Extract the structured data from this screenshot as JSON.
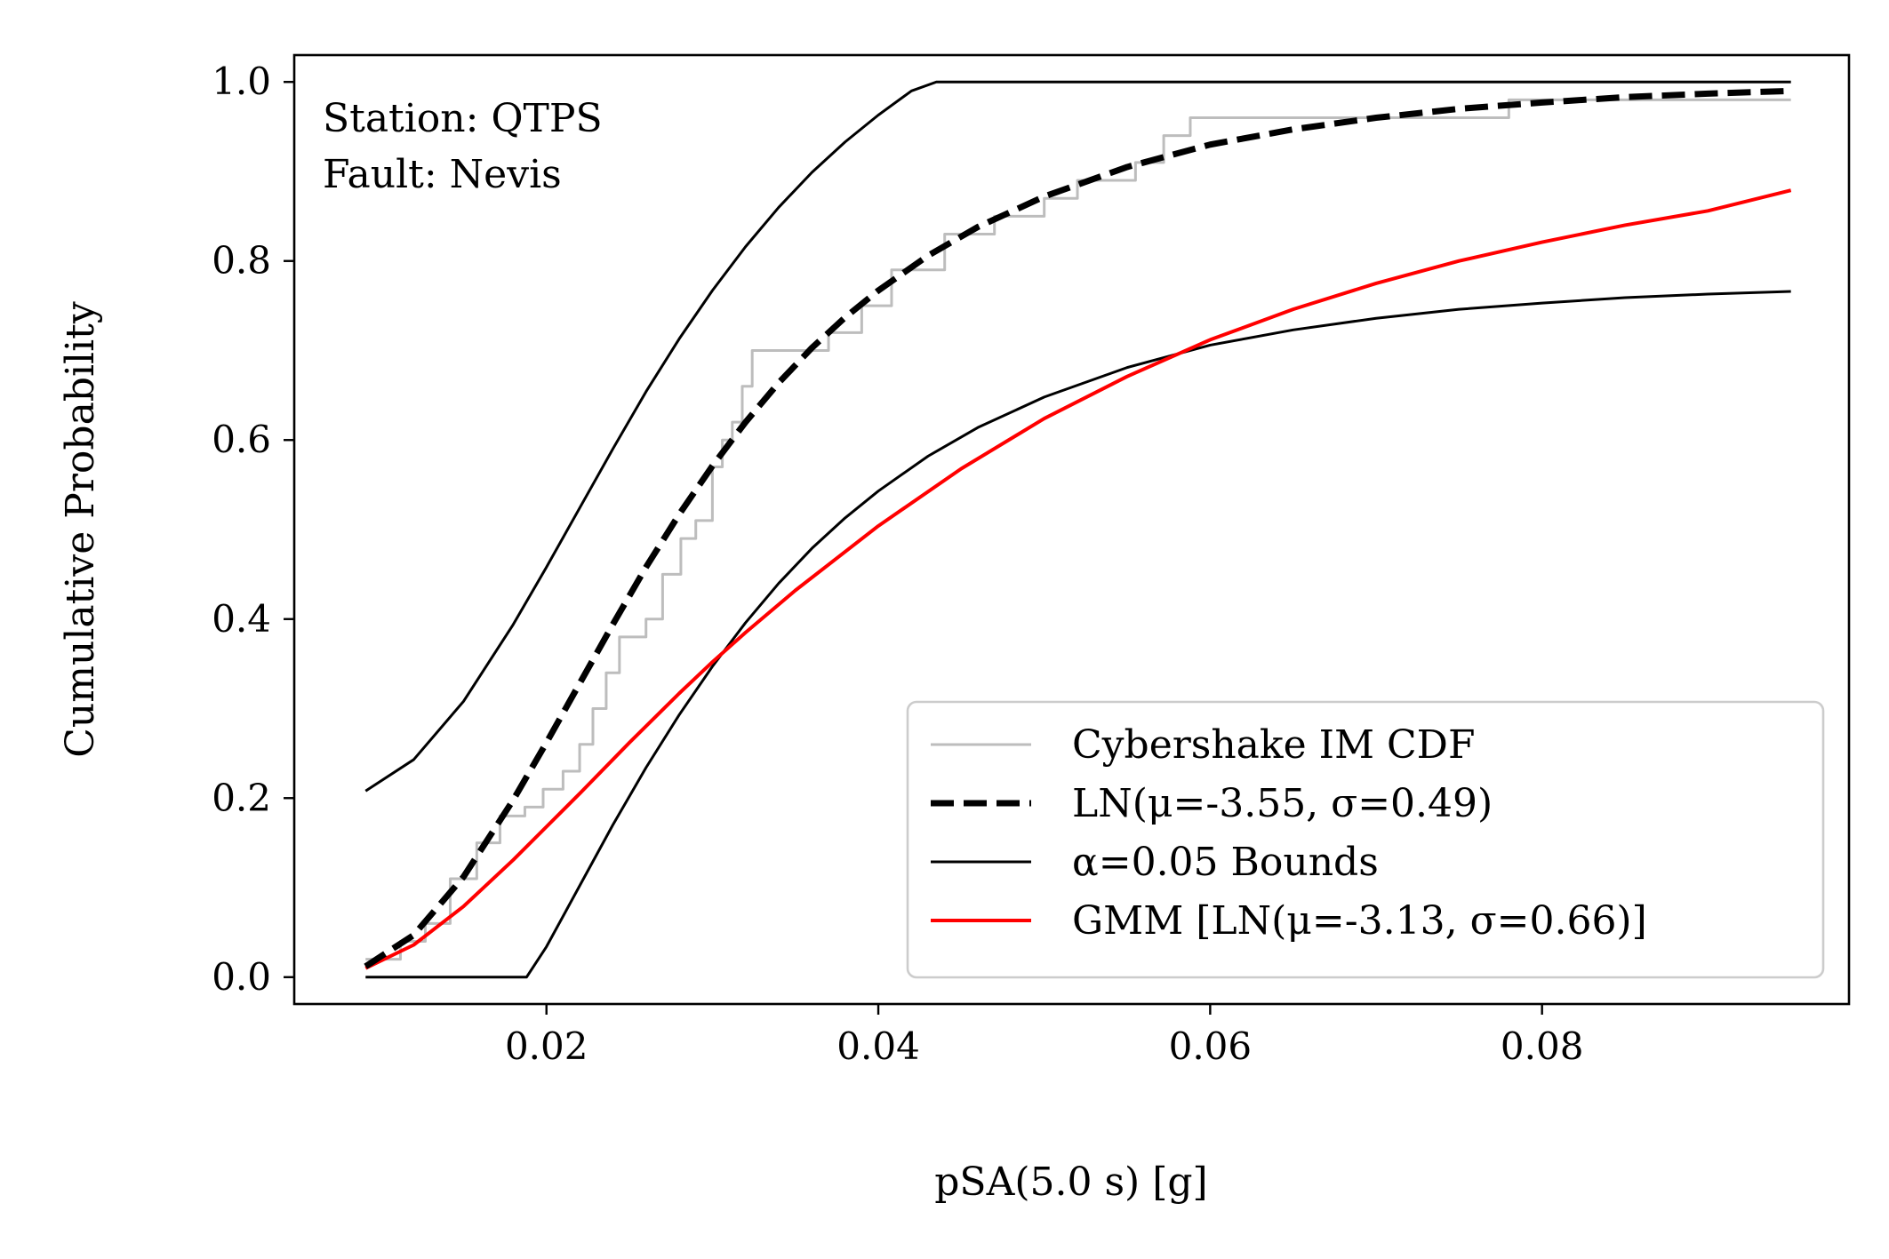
{
  "chart_data": {
    "type": "line",
    "xlabel": "pSA(5.0 s) [g]",
    "ylabel": "Cumulative Probability",
    "xlim": [
      0.0048,
      0.0985
    ],
    "ylim": [
      -0.03,
      1.03
    ],
    "xticks": [
      0.02,
      0.04,
      0.06,
      0.08
    ],
    "xtick_labels": [
      "0.02",
      "0.04",
      "0.06",
      "0.08"
    ],
    "yticks": [
      0.0,
      0.2,
      0.4,
      0.6,
      0.8,
      1.0
    ],
    "ytick_labels": [
      "0.0",
      "0.2",
      "0.4",
      "0.6",
      "0.8",
      "1.0"
    ],
    "grid": false,
    "legend_position": "lower-right",
    "annotations": [
      "Station: QTPS",
      "Fault: Nevis"
    ],
    "series": [
      {
        "name": "Cybershake IM CDF",
        "color": "#bdbdbd",
        "style": "step",
        "x": [
          0.0091,
          0.0112,
          0.0127,
          0.0142,
          0.0158,
          0.0172,
          0.0187,
          0.0198,
          0.021,
          0.022,
          0.0228,
          0.0236,
          0.0244,
          0.026,
          0.027,
          0.0281,
          0.029,
          0.03,
          0.0306,
          0.0312,
          0.0318,
          0.0324,
          0.037,
          0.039,
          0.0408,
          0.044,
          0.047,
          0.05,
          0.052,
          0.0555,
          0.0572,
          0.0588,
          0.062,
          0.07,
          0.078,
          0.095
        ],
        "y": [
          0.02,
          0.04,
          0.06,
          0.11,
          0.15,
          0.18,
          0.19,
          0.21,
          0.23,
          0.26,
          0.3,
          0.34,
          0.38,
          0.4,
          0.45,
          0.49,
          0.51,
          0.57,
          0.6,
          0.62,
          0.66,
          0.7,
          0.72,
          0.75,
          0.79,
          0.83,
          0.85,
          0.87,
          0.89,
          0.91,
          0.94,
          0.96,
          0.96,
          0.96,
          0.98,
          0.98
        ]
      },
      {
        "name": "LN(μ=-3.55, σ=0.49)",
        "color": "#000000",
        "style": "dashed",
        "x": [
          0.0091,
          0.012,
          0.015,
          0.018,
          0.02,
          0.022,
          0.024,
          0.026,
          0.028,
          0.03,
          0.032,
          0.034,
          0.036,
          0.038,
          0.04,
          0.043,
          0.046,
          0.05,
          0.055,
          0.06,
          0.065,
          0.07,
          0.075,
          0.08,
          0.085,
          0.09,
          0.095
        ],
        "y": [
          0.012,
          0.047,
          0.112,
          0.198,
          0.262,
          0.328,
          0.394,
          0.458,
          0.517,
          0.571,
          0.62,
          0.664,
          0.703,
          0.737,
          0.767,
          0.806,
          0.838,
          0.872,
          0.905,
          0.93,
          0.947,
          0.96,
          0.97,
          0.977,
          0.983,
          0.987,
          0.99
        ]
      },
      {
        "name": "α=0.05 Bounds",
        "color": "#000000",
        "style": "solid",
        "x": [
          0.0091,
          0.012,
          0.015,
          0.018,
          0.02,
          0.022,
          0.024,
          0.026,
          0.028,
          0.03,
          0.032,
          0.034,
          0.036,
          0.038,
          0.04,
          0.042,
          0.0435,
          0.05,
          0.06,
          0.07,
          0.08,
          0.095
        ],
        "y": [
          0.208,
          0.243,
          0.308,
          0.394,
          0.458,
          0.524,
          0.59,
          0.654,
          0.713,
          0.767,
          0.816,
          0.86,
          0.899,
          0.933,
          0.963,
          0.99,
          1.0,
          1.0,
          1.0,
          1.0,
          1.0,
          1.0
        ]
      },
      {
        "name": "",
        "color": "#000000",
        "style": "solid",
        "legend": false,
        "x": [
          0.0091,
          0.0188,
          0.02,
          0.022,
          0.024,
          0.026,
          0.028,
          0.03,
          0.032,
          0.034,
          0.036,
          0.038,
          0.04,
          0.043,
          0.046,
          0.05,
          0.055,
          0.06,
          0.065,
          0.07,
          0.075,
          0.08,
          0.085,
          0.09,
          0.095
        ],
        "y": [
          0.0,
          0.0,
          0.034,
          0.102,
          0.17,
          0.234,
          0.293,
          0.347,
          0.396,
          0.44,
          0.479,
          0.513,
          0.543,
          0.582,
          0.614,
          0.648,
          0.681,
          0.706,
          0.723,
          0.736,
          0.746,
          0.753,
          0.759,
          0.763,
          0.766
        ]
      },
      {
        "name": "GMM [LN(μ=-3.13, σ=0.66)]",
        "color": "#ff0000",
        "style": "solid",
        "x": [
          0.0091,
          0.012,
          0.015,
          0.018,
          0.02,
          0.022,
          0.025,
          0.028,
          0.03,
          0.032,
          0.035,
          0.04,
          0.045,
          0.05,
          0.055,
          0.06,
          0.065,
          0.07,
          0.075,
          0.08,
          0.085,
          0.09,
          0.095
        ],
        "y": [
          0.01,
          0.036,
          0.079,
          0.131,
          0.168,
          0.205,
          0.262,
          0.317,
          0.352,
          0.385,
          0.432,
          0.504,
          0.568,
          0.624,
          0.671,
          0.712,
          0.746,
          0.775,
          0.8,
          0.821,
          0.84,
          0.856,
          0.879
        ]
      }
    ]
  }
}
